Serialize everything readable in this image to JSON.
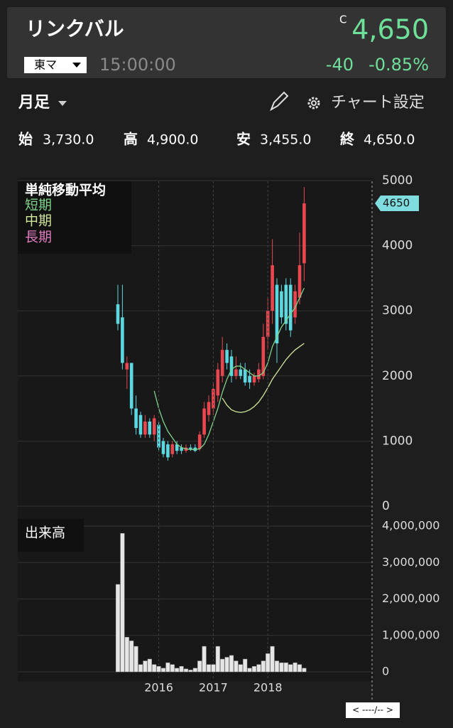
{
  "header": {
    "name": "リンクバル",
    "close_flag": "C",
    "price": "4,650",
    "market": "東マ",
    "time": "15:00:00",
    "change": "-40",
    "change_pct": "-0.85%"
  },
  "toolbar": {
    "period": "月足",
    "settings": "チャート設定"
  },
  "ohlc": [
    {
      "label": "始",
      "value": "3,730.0"
    },
    {
      "label": "高",
      "value": "4,900.0"
    },
    {
      "label": "安",
      "value": "3,455.0"
    },
    {
      "label": "終",
      "value": "4,650.0"
    }
  ],
  "chart_data": [
    {
      "type": "candlestick",
      "title": "単純移動平均",
      "open": [
        3100,
        2900,
        2100,
        2200,
        1500,
        1400,
        1100,
        1300,
        1100,
        1250,
        1000,
        950,
        800,
        950,
        900,
        850,
        900,
        900,
        880,
        1100,
        1400,
        1500,
        1700,
        2000,
        2400,
        2300,
        2000,
        2100,
        2100,
        2000,
        1900,
        1950,
        2000,
        2600,
        3000,
        3400,
        3300,
        3400,
        3400,
        2900,
        3200,
        3730
      ],
      "high": [
        3400,
        3400,
        2300,
        2200,
        1700,
        1450,
        1400,
        1350,
        1400,
        1300,
        1050,
        1000,
        1000,
        1000,
        950,
        950,
        950,
        950,
        1150,
        1600,
        1700,
        1900,
        2200,
        2600,
        2500,
        2400,
        2300,
        2200,
        2200,
        2100,
        2050,
        2200,
        2800,
        3200,
        4100,
        3500,
        3400,
        3500,
        3500,
        3400,
        4200,
        4900
      ],
      "low": [
        2700,
        2100,
        1800,
        1400,
        1100,
        1050,
        1050,
        1050,
        1000,
        850,
        750,
        700,
        750,
        800,
        800,
        820,
        850,
        830,
        850,
        1050,
        1300,
        1400,
        1600,
        1900,
        2100,
        1900,
        1950,
        1950,
        1850,
        1800,
        1850,
        1900,
        1950,
        2400,
        2800,
        2200,
        2800,
        2700,
        2600,
        2800,
        3100,
        3455
      ],
      "close": [
        2800,
        2200,
        2200,
        1500,
        1200,
        1100,
        1300,
        1100,
        1350,
        900,
        800,
        750,
        950,
        850,
        850,
        900,
        880,
        850,
        1100,
        1500,
        1600,
        1800,
        2100,
        2400,
        2200,
        2000,
        2100,
        2000,
        1900,
        1900,
        2000,
        2100,
        2600,
        3000,
        3700,
        2500,
        2900,
        2800,
        2700,
        3300,
        3700,
        4650
      ],
      "up_color": "#e8474f",
      "down_color": "#5ed8e0",
      "series": [
        {
          "name": "短期",
          "color": "#7fd48a",
          "values": [
            null,
            null,
            null,
            null,
            null,
            null,
            null,
            null,
            1770,
            1500,
            1300,
            1150,
            1050,
            950,
            900,
            880,
            870,
            870,
            880,
            950,
            1100,
            1300,
            1500,
            1750,
            1950,
            2100,
            2150,
            2150,
            2100,
            2050,
            2000,
            2000,
            2050,
            2200,
            2450,
            2600,
            2750,
            2850,
            2950,
            3050,
            3200,
            3350
          ]
        },
        {
          "name": "中期",
          "color": "#d2e89a",
          "values": [
            null,
            null,
            null,
            null,
            null,
            null,
            null,
            null,
            null,
            null,
            null,
            null,
            null,
            null,
            null,
            null,
            null,
            null,
            null,
            null,
            null,
            null,
            null,
            1660,
            1550,
            1480,
            1450,
            1440,
            1450,
            1480,
            1530,
            1600,
            1700,
            1820,
            1950,
            2050,
            2150,
            2250,
            2330,
            2400,
            2450,
            2500
          ]
        },
        {
          "name": "長期",
          "color": "#e07ec0",
          "values": [
            null,
            null,
            null,
            null,
            null,
            null,
            null,
            null,
            null,
            null,
            null,
            null,
            null,
            null,
            null,
            null,
            null,
            null,
            null,
            null,
            null,
            null,
            null,
            null,
            null,
            null,
            null,
            null,
            null,
            null,
            null,
            null,
            null,
            null,
            null,
            null,
            null,
            null,
            null,
            null,
            null,
            null
          ]
        }
      ],
      "ylim": [
        0,
        5000
      ],
      "yticks": [
        0,
        1000,
        2000,
        3000,
        4000,
        5000
      ],
      "last_price": 4650,
      "grid": true
    },
    {
      "type": "bar",
      "title": "出来高",
      "color": "#e6e6e6",
      "categories": [
        null,
        null,
        null,
        null,
        null,
        null,
        null,
        null,
        null,
        "2016",
        null,
        null,
        null,
        null,
        null,
        null,
        null,
        null,
        null,
        null,
        null,
        "2017",
        null,
        null,
        null,
        null,
        null,
        null,
        null,
        null,
        null,
        null,
        null,
        "2018",
        null,
        null,
        null,
        null,
        null,
        null,
        null,
        null
      ],
      "values": [
        2400000,
        3800000,
        950000,
        850000,
        700000,
        200000,
        300000,
        350000,
        200000,
        150000,
        100000,
        250000,
        200000,
        100000,
        150000,
        80000,
        50000,
        100000,
        300000,
        700000,
        200000,
        200000,
        700000,
        350000,
        400000,
        450000,
        300000,
        200000,
        350000,
        100000,
        150000,
        200000,
        300000,
        500000,
        700000,
        300000,
        250000,
        250000,
        200000,
        250000,
        200000,
        100000
      ],
      "ylim": [
        0,
        4000000
      ],
      "yticks": [
        0,
        {
          "value": 1000000,
          "label": "1,000,000"
        },
        {
          "value": 2000000,
          "label": "2,000,000"
        },
        {
          "value": 3000000,
          "label": "3,000,000"
        },
        {
          "value": 4000000,
          "label": "4,000,000"
        }
      ],
      "grid": true
    }
  ],
  "nav": "< ----/-- >"
}
